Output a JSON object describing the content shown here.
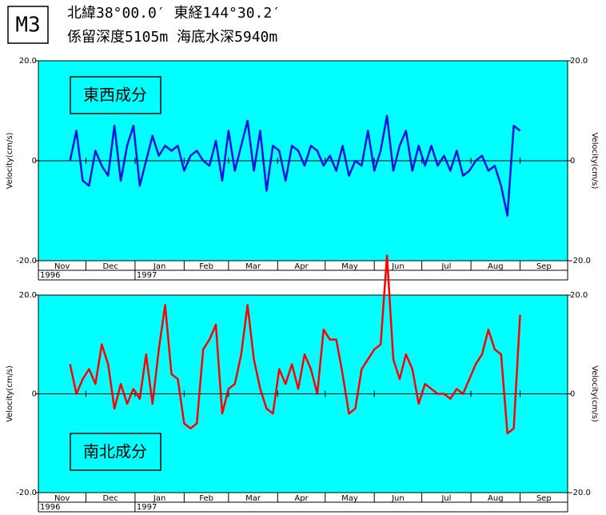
{
  "header": {
    "station": "M3",
    "position": "北緯38°00.0′ 東経144°30.2′",
    "depth": "係留深度5105m 海底水深5940m"
  },
  "chart_data": [
    {
      "type": "line",
      "title": "東西成分",
      "ylabel": "Velocity(cm/s)",
      "ylim": [
        -20,
        20
      ],
      "yticks": [
        {
          "value": -20,
          "label": "-20.0"
        },
        0,
        {
          "value": 20,
          "label": "20.0"
        }
      ],
      "xlim": [
        0,
        334
      ],
      "xticks": [
        0,
        30,
        61,
        92,
        120,
        151,
        181,
        212,
        242,
        273,
        304,
        334
      ],
      "months": [
        "Nov",
        "Dec",
        "Jan",
        "Feb",
        "Mar",
        "Apr",
        "May",
        "Jun",
        "Jul",
        "Aug",
        "Sep"
      ],
      "years": [
        {
          "value": 0,
          "label": "1996"
        },
        {
          "value": 61,
          "label": "1997"
        }
      ],
      "background": "#00ffff",
      "x": [
        20,
        24,
        28,
        32,
        36,
        40,
        44,
        48,
        52,
        56,
        60,
        64,
        68,
        72,
        76,
        80,
        84,
        88,
        92,
        96,
        100,
        104,
        108,
        112,
        116,
        120,
        124,
        128,
        132,
        136,
        140,
        144,
        148,
        152,
        156,
        160,
        164,
        168,
        172,
        176,
        180,
        184,
        188,
        192,
        196,
        200,
        204,
        208,
        212,
        216,
        220,
        224,
        228,
        232,
        236,
        240,
        244,
        248,
        252,
        256,
        260,
        264,
        268,
        272,
        276,
        280,
        284,
        288,
        292,
        296,
        300,
        304
      ],
      "series": [
        {
          "color": "#1010e0",
          "values": [
            0,
            6,
            -4,
            -5,
            2,
            -1,
            -3,
            7,
            -4,
            3,
            7,
            -5,
            0,
            5,
            1,
            3,
            2,
            3,
            -2,
            1,
            2,
            0,
            -1,
            4,
            -4,
            6,
            -2,
            3,
            8,
            -2,
            6,
            -6,
            3,
            2,
            -4,
            3,
            2,
            -1,
            3,
            2,
            -1,
            1,
            -2,
            3,
            -3,
            0,
            -1,
            6,
            -2,
            2,
            9,
            -2,
            3,
            6,
            -2,
            3,
            -1,
            3,
            -1,
            1,
            -2,
            2,
            -3,
            -2,
            0,
            1,
            -2,
            -1,
            -5,
            -11,
            7,
            6
          ]
        }
      ]
    },
    {
      "type": "line",
      "title": "南北成分",
      "ylabel": "Velocity(cm/s)",
      "ylim": [
        -20,
        20
      ],
      "yticks": [
        {
          "value": -20,
          "label": "-20.0"
        },
        0,
        {
          "value": 20,
          "label": "20.0"
        }
      ],
      "xlim": [
        0,
        334
      ],
      "xticks": [
        0,
        30,
        61,
        92,
        120,
        151,
        181,
        212,
        242,
        273,
        304,
        334
      ],
      "months": [
        "Nov",
        "Dec",
        "Jan",
        "Feb",
        "Mar",
        "Apr",
        "May",
        "Jun",
        "Jul",
        "Aug",
        "Sep"
      ],
      "years": [
        {
          "value": 0,
          "label": "1996"
        },
        {
          "value": 61,
          "label": "1997"
        }
      ],
      "background": "#00ffff",
      "x": [
        20,
        24,
        28,
        32,
        36,
        40,
        44,
        48,
        52,
        56,
        60,
        64,
        68,
        72,
        76,
        80,
        84,
        88,
        92,
        96,
        100,
        104,
        108,
        112,
        116,
        120,
        124,
        128,
        132,
        136,
        140,
        144,
        148,
        152,
        156,
        160,
        164,
        168,
        172,
        176,
        180,
        184,
        188,
        192,
        196,
        200,
        204,
        208,
        212,
        216,
        220,
        224,
        228,
        232,
        236,
        240,
        244,
        248,
        252,
        256,
        260,
        264,
        268,
        272,
        276,
        280,
        284,
        288,
        292,
        296,
        300,
        304
      ],
      "series": [
        {
          "color": "#ff0000",
          "values": [
            6,
            0,
            3,
            5,
            2,
            10,
            6,
            -3,
            2,
            -2,
            1,
            -1,
            8,
            -2,
            9,
            18,
            4,
            3,
            -6,
            -7,
            -6,
            9,
            11,
            14,
            -4,
            1,
            2,
            8,
            18,
            7,
            1,
            -3,
            -4,
            5,
            2,
            6,
            1,
            8,
            5,
            0,
            13,
            11,
            11,
            4,
            -4,
            -3,
            5,
            7,
            9,
            10,
            28,
            7,
            3,
            8,
            5,
            -2,
            2,
            1,
            0,
            0,
            -1,
            1,
            0,
            3,
            6,
            8,
            13,
            9,
            8,
            -8,
            -7,
            16
          ]
        }
      ]
    }
  ]
}
